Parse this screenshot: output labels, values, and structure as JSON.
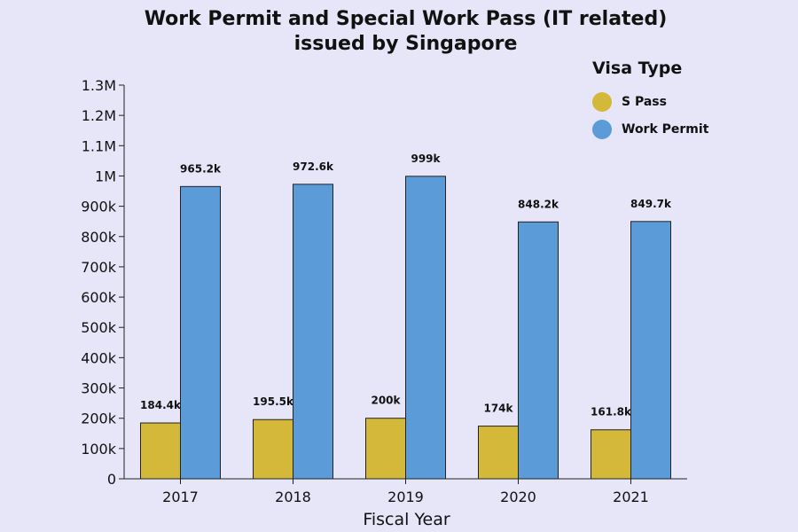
{
  "title_line1": "Work Permit and Special Work Pass (IT related)",
  "title_line2": "issued by Singapore",
  "chart_data": {
    "type": "bar",
    "title": "Work Permit and Special Work Pass (IT related) issued by Singapore",
    "xlabel": "Fiscal Year",
    "ylabel": "",
    "categories": [
      "2017",
      "2018",
      "2019",
      "2020",
      "2021"
    ],
    "ylim": [
      0,
      1300000
    ],
    "yticks": [
      {
        "value": 0,
        "label": "0"
      },
      {
        "value": 100000,
        "label": "100k"
      },
      {
        "value": 200000,
        "label": "200k"
      },
      {
        "value": 300000,
        "label": "300k"
      },
      {
        "value": 400000,
        "label": "400k"
      },
      {
        "value": 500000,
        "label": "500k"
      },
      {
        "value": 600000,
        "label": "600k"
      },
      {
        "value": 700000,
        "label": "700k"
      },
      {
        "value": 800000,
        "label": "800k"
      },
      {
        "value": 900000,
        "label": "900k"
      },
      {
        "value": 1000000,
        "label": "1M"
      },
      {
        "value": 1100000,
        "label": "1.1M"
      },
      {
        "value": 1200000,
        "label": "1.2M"
      },
      {
        "value": 1300000,
        "label": "1.3M"
      }
    ],
    "legend_title": "Visa Type",
    "legend_position": "top-right",
    "grid": false,
    "series": [
      {
        "name": "S Pass",
        "color": "#d4b83a",
        "values": [
          184400,
          195500,
          200000,
          174000,
          161800
        ],
        "labels": [
          "184.4k",
          "195.5k",
          "200k",
          "174k",
          "161.8k"
        ]
      },
      {
        "name": "Work Permit",
        "color": "#5b9bd8",
        "values": [
          965200,
          972600,
          999000,
          848200,
          849700
        ],
        "labels": [
          "965.2k",
          "972.6k",
          "999k",
          "848.2k",
          "849.7k"
        ]
      }
    ]
  }
}
